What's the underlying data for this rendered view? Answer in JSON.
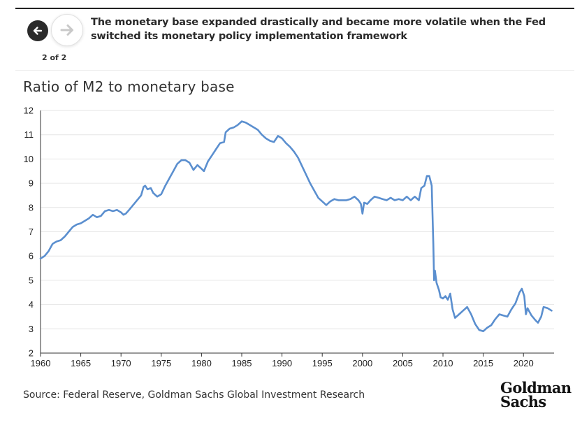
{
  "nav": {
    "back_icon": "arrow-left-icon",
    "forward_icon": "arrow-right-icon",
    "counter": "2 of 2"
  },
  "headline": "The monetary base expanded drastically and became more volatile when the Fed switched its monetary policy implementation framework",
  "source": "Source: Federal Reserve, Goldman Sachs Global Investment Research",
  "logo": {
    "line1": "Goldman",
    "line2": "Sachs"
  },
  "colors": {
    "line": "#5b8fcf",
    "grid": "#e6e6e6",
    "text": "#222222"
  },
  "chart_data": {
    "type": "line",
    "title": "Ratio of M2 to monetary base",
    "xlabel": "",
    "ylabel": "",
    "xlim": [
      1960,
      2023.8
    ],
    "ylim": [
      2,
      12
    ],
    "x_ticks": [
      1960,
      1965,
      1970,
      1975,
      1980,
      1985,
      1990,
      1995,
      2000,
      2005,
      2010,
      2015,
      2020
    ],
    "y_ticks": [
      2,
      3,
      4,
      5,
      6,
      7,
      8,
      9,
      10,
      11,
      12
    ],
    "grid": "horizontal",
    "legend": "none",
    "series": [
      {
        "values": [
          [
            1960.0,
            5.9
          ],
          [
            1960.5,
            6.0
          ],
          [
            1961.0,
            6.2
          ],
          [
            1961.5,
            6.5
          ],
          [
            1962.0,
            6.6
          ],
          [
            1962.5,
            6.65
          ],
          [
            1963.0,
            6.8
          ],
          [
            1963.5,
            7.0
          ],
          [
            1964.0,
            7.2
          ],
          [
            1964.5,
            7.3
          ],
          [
            1965.0,
            7.35
          ],
          [
            1965.5,
            7.45
          ],
          [
            1966.0,
            7.55
          ],
          [
            1966.5,
            7.7
          ],
          [
            1967.0,
            7.6
          ],
          [
            1967.5,
            7.65
          ],
          [
            1968.0,
            7.85
          ],
          [
            1968.5,
            7.9
          ],
          [
            1969.0,
            7.85
          ],
          [
            1969.5,
            7.9
          ],
          [
            1970.0,
            7.8
          ],
          [
            1970.3,
            7.7
          ],
          [
            1970.6,
            7.75
          ],
          [
            1971.0,
            7.9
          ],
          [
            1971.5,
            8.1
          ],
          [
            1972.0,
            8.3
          ],
          [
            1972.5,
            8.5
          ],
          [
            1972.8,
            8.85
          ],
          [
            1973.0,
            8.9
          ],
          [
            1973.3,
            8.75
          ],
          [
            1973.7,
            8.8
          ],
          [
            1974.0,
            8.6
          ],
          [
            1974.5,
            8.45
          ],
          [
            1975.0,
            8.55
          ],
          [
            1975.5,
            8.9
          ],
          [
            1976.0,
            9.2
          ],
          [
            1976.5,
            9.5
          ],
          [
            1977.0,
            9.8
          ],
          [
            1977.5,
            9.95
          ],
          [
            1978.0,
            9.95
          ],
          [
            1978.5,
            9.85
          ],
          [
            1979.0,
            9.55
          ],
          [
            1979.5,
            9.75
          ],
          [
            1980.0,
            9.6
          ],
          [
            1980.3,
            9.5
          ],
          [
            1980.8,
            9.9
          ],
          [
            1981.3,
            10.15
          ],
          [
            1981.8,
            10.4
          ],
          [
            1982.3,
            10.65
          ],
          [
            1982.8,
            10.7
          ],
          [
            1983.0,
            11.1
          ],
          [
            1983.5,
            11.25
          ],
          [
            1984.0,
            11.3
          ],
          [
            1984.5,
            11.4
          ],
          [
            1985.0,
            11.55
          ],
          [
            1985.5,
            11.5
          ],
          [
            1986.0,
            11.4
          ],
          [
            1986.5,
            11.3
          ],
          [
            1987.0,
            11.2
          ],
          [
            1987.5,
            11.0
          ],
          [
            1988.0,
            10.85
          ],
          [
            1988.5,
            10.75
          ],
          [
            1989.0,
            10.7
          ],
          [
            1989.5,
            10.95
          ],
          [
            1990.0,
            10.85
          ],
          [
            1990.5,
            10.65
          ],
          [
            1991.0,
            10.5
          ],
          [
            1991.5,
            10.3
          ],
          [
            1992.0,
            10.05
          ],
          [
            1992.5,
            9.7
          ],
          [
            1993.0,
            9.35
          ],
          [
            1993.5,
            9.0
          ],
          [
            1994.0,
            8.7
          ],
          [
            1994.5,
            8.4
          ],
          [
            1995.0,
            8.25
          ],
          [
            1995.5,
            8.1
          ],
          [
            1996.0,
            8.25
          ],
          [
            1996.5,
            8.35
          ],
          [
            1997.0,
            8.3
          ],
          [
            1997.5,
            8.3
          ],
          [
            1998.0,
            8.3
          ],
          [
            1998.5,
            8.35
          ],
          [
            1999.0,
            8.45
          ],
          [
            1999.5,
            8.3
          ],
          [
            1999.8,
            8.15
          ],
          [
            2000.0,
            7.75
          ],
          [
            2000.2,
            8.2
          ],
          [
            2000.6,
            8.15
          ],
          [
            2001.0,
            8.3
          ],
          [
            2001.5,
            8.45
          ],
          [
            2002.0,
            8.4
          ],
          [
            2002.5,
            8.35
          ],
          [
            2003.0,
            8.3
          ],
          [
            2003.5,
            8.4
          ],
          [
            2004.0,
            8.3
          ],
          [
            2004.5,
            8.35
          ],
          [
            2005.0,
            8.3
          ],
          [
            2005.5,
            8.45
          ],
          [
            2006.0,
            8.3
          ],
          [
            2006.5,
            8.45
          ],
          [
            2007.0,
            8.3
          ],
          [
            2007.3,
            8.8
          ],
          [
            2007.7,
            8.9
          ],
          [
            2008.0,
            9.3
          ],
          [
            2008.3,
            9.3
          ],
          [
            2008.6,
            8.9
          ],
          [
            2008.8,
            6.5
          ],
          [
            2008.9,
            5.0
          ],
          [
            2009.0,
            5.4
          ],
          [
            2009.2,
            4.9
          ],
          [
            2009.5,
            4.6
          ],
          [
            2009.7,
            4.3
          ],
          [
            2010.0,
            4.25
          ],
          [
            2010.3,
            4.35
          ],
          [
            2010.6,
            4.2
          ],
          [
            2010.9,
            4.45
          ],
          [
            2011.2,
            3.8
          ],
          [
            2011.5,
            3.45
          ],
          [
            2012.0,
            3.6
          ],
          [
            2012.5,
            3.75
          ],
          [
            2013.0,
            3.9
          ],
          [
            2013.5,
            3.6
          ],
          [
            2014.0,
            3.2
          ],
          [
            2014.5,
            2.95
          ],
          [
            2015.0,
            2.9
          ],
          [
            2015.5,
            3.05
          ],
          [
            2016.0,
            3.15
          ],
          [
            2016.5,
            3.4
          ],
          [
            2017.0,
            3.6
          ],
          [
            2017.5,
            3.55
          ],
          [
            2018.0,
            3.5
          ],
          [
            2018.5,
            3.8
          ],
          [
            2019.0,
            4.05
          ],
          [
            2019.5,
            4.5
          ],
          [
            2019.8,
            4.65
          ],
          [
            2020.1,
            4.35
          ],
          [
            2020.3,
            3.6
          ],
          [
            2020.5,
            3.85
          ],
          [
            2021.0,
            3.55
          ],
          [
            2021.5,
            3.35
          ],
          [
            2021.8,
            3.25
          ],
          [
            2022.2,
            3.5
          ],
          [
            2022.5,
            3.9
          ],
          [
            2023.0,
            3.85
          ],
          [
            2023.5,
            3.75
          ]
        ]
      }
    ]
  }
}
